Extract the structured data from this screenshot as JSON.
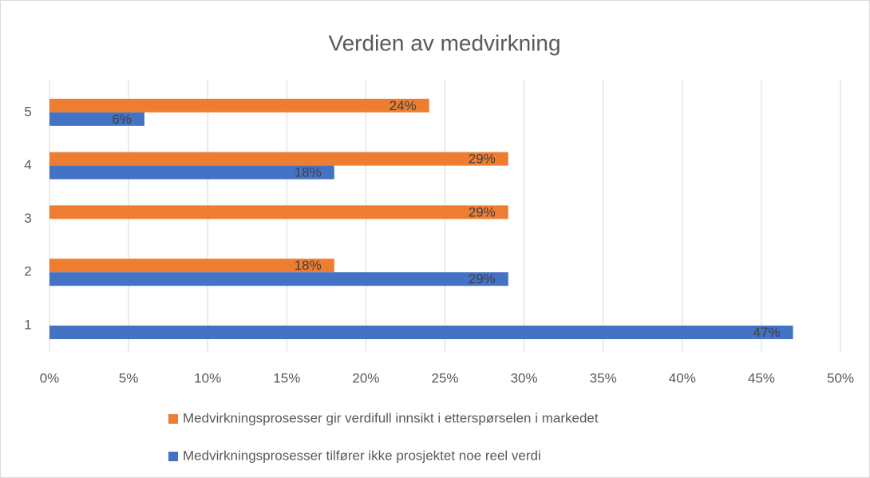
{
  "chart_data": {
    "type": "hbar",
    "title": "Verdien av medvirkning",
    "categories": [
      "1",
      "2",
      "3",
      "4",
      "5"
    ],
    "series": [
      {
        "name": "Medvirkningsprosesser gir verdifull innsikt i etterspørselen i markedet",
        "color": "#ed7d31",
        "values": [
          null,
          18,
          29,
          29,
          24
        ],
        "value_labels": [
          null,
          "18%",
          "29%",
          "29%",
          "24%"
        ]
      },
      {
        "name": "Medvirkningsprosesser tilfører ikke prosjektet noe reel verdi",
        "color": "#4472c4",
        "values": [
          47,
          29,
          null,
          18,
          6
        ],
        "value_labels": [
          "47%",
          "29%",
          null,
          "18%",
          "6%"
        ]
      }
    ],
    "xlim": [
      0,
      50
    ],
    "xticks": [
      {
        "value": 0,
        "label": "0%"
      },
      {
        "value": 5,
        "label": "5%"
      },
      {
        "value": 10,
        "label": "10%"
      },
      {
        "value": 15,
        "label": "15%"
      },
      {
        "value": 20,
        "label": "20%"
      },
      {
        "value": 25,
        "label": "25%"
      },
      {
        "value": 30,
        "label": "30%"
      },
      {
        "value": 35,
        "label": "35%"
      },
      {
        "value": 40,
        "label": "40%"
      },
      {
        "value": 45,
        "label": "45%"
      },
      {
        "value": 50,
        "label": "50%"
      }
    ],
    "grid": true,
    "legend": "bottom"
  }
}
